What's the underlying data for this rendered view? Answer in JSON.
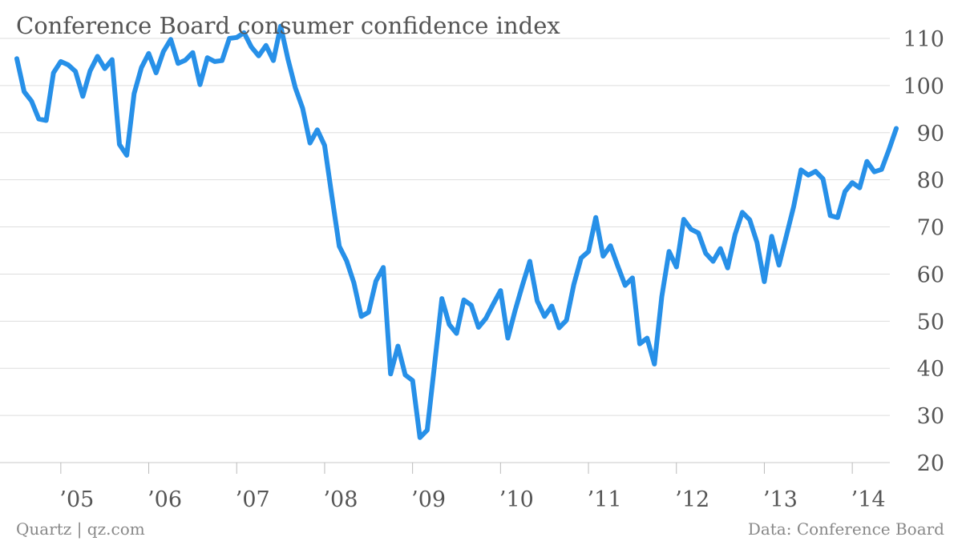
{
  "chart_data": {
    "type": "line",
    "title": "Conference Board consumer confidence index",
    "xlabel": "",
    "ylabel": "",
    "ylim": [
      20,
      110
    ],
    "yticks": [
      20,
      30,
      40,
      50,
      60,
      70,
      80,
      90,
      100,
      110
    ],
    "xticks": [
      "’05",
      "’06",
      "’07",
      "’08",
      "’09",
      "’10",
      "’11",
      "’12",
      "’13",
      "’14"
    ],
    "grid": true,
    "line_color": "#2790e8",
    "x": [
      "2004-07",
      "2004-08",
      "2004-09",
      "2004-10",
      "2004-11",
      "2004-12",
      "2005-01",
      "2005-02",
      "2005-03",
      "2005-04",
      "2005-05",
      "2005-06",
      "2005-07",
      "2005-08",
      "2005-09",
      "2005-10",
      "2005-11",
      "2005-12",
      "2006-01",
      "2006-02",
      "2006-03",
      "2006-04",
      "2006-05",
      "2006-06",
      "2006-07",
      "2006-08",
      "2006-09",
      "2006-10",
      "2006-11",
      "2006-12",
      "2007-01",
      "2007-02",
      "2007-03",
      "2007-04",
      "2007-05",
      "2007-06",
      "2007-07",
      "2007-08",
      "2007-09",
      "2007-10",
      "2007-11",
      "2007-12",
      "2008-01",
      "2008-02",
      "2008-03",
      "2008-04",
      "2008-05",
      "2008-06",
      "2008-07",
      "2008-08",
      "2008-09",
      "2008-10",
      "2008-11",
      "2008-12",
      "2009-01",
      "2009-02",
      "2009-03",
      "2009-04",
      "2009-05",
      "2009-06",
      "2009-07",
      "2009-08",
      "2009-09",
      "2009-10",
      "2009-11",
      "2009-12",
      "2010-01",
      "2010-02",
      "2010-03",
      "2010-04",
      "2010-05",
      "2010-06",
      "2010-07",
      "2010-08",
      "2010-09",
      "2010-10",
      "2010-11",
      "2010-12",
      "2011-01",
      "2011-02",
      "2011-03",
      "2011-04",
      "2011-05",
      "2011-06",
      "2011-07",
      "2011-08",
      "2011-09",
      "2011-10",
      "2011-11",
      "2011-12",
      "2012-01",
      "2012-02",
      "2012-03",
      "2012-04",
      "2012-05",
      "2012-06",
      "2012-07",
      "2012-08",
      "2012-09",
      "2012-10",
      "2012-11",
      "2012-12",
      "2013-01",
      "2013-02",
      "2013-03",
      "2013-04",
      "2013-05",
      "2013-06",
      "2013-07",
      "2013-08",
      "2013-09",
      "2013-10",
      "2013-11",
      "2013-12",
      "2014-01",
      "2014-02",
      "2014-03",
      "2014-04",
      "2014-05",
      "2014-06",
      "2014-07"
    ],
    "series": [
      {
        "values": [
          105.7,
          98.7,
          96.7,
          92.9,
          92.6,
          102.7,
          105.1,
          104.4,
          103.0,
          97.7,
          103.1,
          106.2,
          103.6,
          105.5,
          87.5,
          85.2,
          98.3,
          103.8,
          106.8,
          102.7,
          107.2,
          109.8,
          104.7,
          105.4,
          107.0,
          100.2,
          105.9,
          105.1,
          105.3,
          110.0,
          110.2,
          111.2,
          108.2,
          106.3,
          108.5,
          105.3,
          112.6,
          105.6,
          99.5,
          95.2,
          87.8,
          90.6,
          87.3,
          76.4,
          65.9,
          62.8,
          58.1,
          51.0,
          51.9,
          58.5,
          61.4,
          38.8,
          44.7,
          38.6,
          37.4,
          25.3,
          26.9,
          40.8,
          54.8,
          49.3,
          47.4,
          54.5,
          53.4,
          48.7,
          50.6,
          53.6,
          56.5,
          46.4,
          52.3,
          57.7,
          62.7,
          54.3,
          51.0,
          53.2,
          48.6,
          50.2,
          57.8,
          63.4,
          64.8,
          72.0,
          63.8,
          66.0,
          61.7,
          57.6,
          59.2,
          45.2,
          46.4,
          40.9,
          55.2,
          64.8,
          61.5,
          71.6,
          69.5,
          68.7,
          64.4,
          62.7,
          65.4,
          61.3,
          68.4,
          73.1,
          71.5,
          66.7,
          58.4,
          68.0,
          61.9,
          68.1,
          74.3,
          82.1,
          81.0,
          81.8,
          80.2,
          72.4,
          72.0,
          77.5,
          79.4,
          78.3,
          83.9,
          81.7,
          82.2,
          86.4,
          90.9
        ]
      }
    ]
  },
  "footer": {
    "source_left": "Quartz | qz.com",
    "source_right": "Data: Conference Board"
  }
}
